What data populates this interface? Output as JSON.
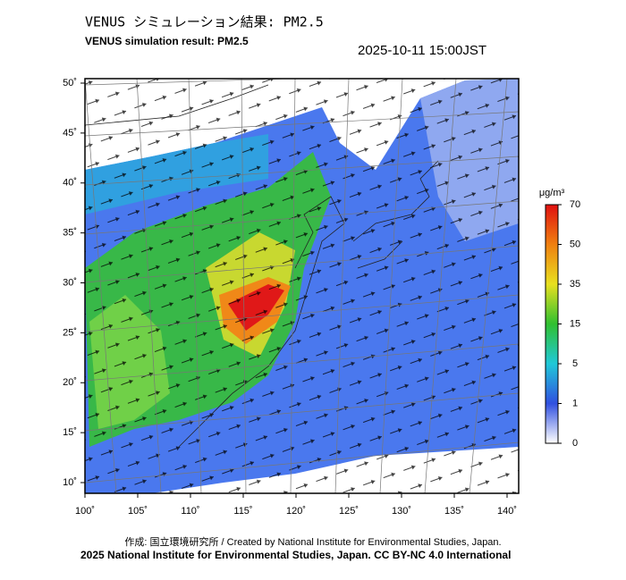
{
  "map": {
    "title": "VENUS シミュレーション結果: PM2.5",
    "subtitle": "VENUS simulation result: PM2.5",
    "timestamp": "2025-10-11 15:00JST",
    "xlim": [
      100,
      140
    ],
    "xticks": [
      {
        "value": 100,
        "label": "100˚"
      },
      {
        "value": 105,
        "label": "105˚"
      },
      {
        "value": 110,
        "label": "110˚"
      },
      {
        "value": 115,
        "label": "115˚"
      },
      {
        "value": 120,
        "label": "120˚"
      },
      {
        "value": 125,
        "label": "125˚"
      },
      {
        "value": 130,
        "label": "130˚"
      },
      {
        "value": 135,
        "label": "135˚"
      },
      {
        "value": 140,
        "label": "140˚"
      }
    ],
    "ylim": [
      10,
      50
    ],
    "yticks": [
      {
        "value": 10,
        "label": "10˚"
      },
      {
        "value": 15,
        "label": "15˚"
      },
      {
        "value": 20,
        "label": "20˚"
      },
      {
        "value": 25,
        "label": "25˚"
      },
      {
        "value": 30,
        "label": "30˚"
      },
      {
        "value": 35,
        "label": "35˚"
      },
      {
        "value": 40,
        "label": "40˚"
      },
      {
        "value": 45,
        "label": "45˚"
      },
      {
        "value": 50,
        "label": "50˚"
      }
    ],
    "colorbar": {
      "label": "μg/m³",
      "ticks": [
        0,
        1,
        5,
        15,
        35,
        50,
        70
      ],
      "colors": [
        "#ffffff",
        "#3050e0",
        "#20c8d8",
        "#30c030",
        "#e8e020",
        "#f08010",
        "#e01010"
      ]
    }
  },
  "footer": {
    "line1": "作成: 国立環境研究所 / Created by National Institute for Environmental Studies, Japan.",
    "line2": "2025 National Institute for Environmental Studies, Japan. CC BY-NC 4.0 International"
  }
}
